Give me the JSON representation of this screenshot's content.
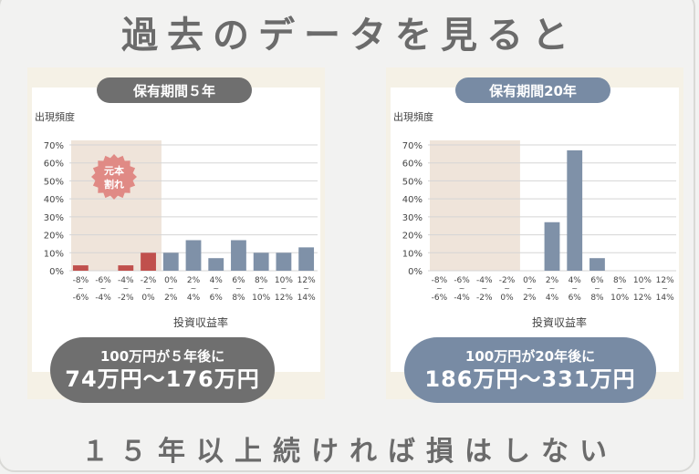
{
  "header": {
    "title": "過去のデータを見ると"
  },
  "footer": {
    "text": "１５年以上続ければ損はしない"
  },
  "left_panel": {
    "pill_label": "保有期間５年",
    "result_line1": "100万円が５年後に",
    "result_line2": "74万円〜176万円",
    "loss_badge_line1": "元本",
    "loss_badge_line2": "割れ"
  },
  "right_panel": {
    "pill_label": "保有期間20年",
    "result_line1": "100万円が20年後に",
    "result_line2": "186万円〜331万円"
  },
  "colors": {
    "negative_bar": "#c0504d",
    "positive_bar": "#7f91a8",
    "loss_region": "#efe4da",
    "loss_badge": "#e08a85"
  },
  "chart_data": [
    {
      "type": "bar",
      "ylabel": "出現頻度",
      "xlabel": "投資収益率",
      "yticks": [
        "0%",
        "10%",
        "20%",
        "30%",
        "40%",
        "50%",
        "60%",
        "70%"
      ],
      "ylim": [
        0,
        70
      ],
      "categories": [
        [
          "-8%",
          "~",
          "-6%"
        ],
        [
          "-6%",
          "~",
          "-4%"
        ],
        [
          "-4%",
          "~",
          "-2%"
        ],
        [
          "-2%",
          "~",
          "0%"
        ],
        [
          "0%",
          "~",
          "2%"
        ],
        [
          "2%",
          "~",
          "4%"
        ],
        [
          "4%",
          "~",
          "6%"
        ],
        [
          "6%",
          "~",
          "8%"
        ],
        [
          "8%",
          "~",
          "10%"
        ],
        [
          "10%",
          "~",
          "12%"
        ],
        [
          "12%",
          "~",
          "14%"
        ]
      ],
      "values": [
        3,
        0,
        3,
        10,
        10,
        17,
        7,
        17,
        10,
        10,
        13
      ],
      "negative_count": 4,
      "grid": true
    },
    {
      "type": "bar",
      "ylabel": "出現頻度",
      "xlabel": "投資収益率",
      "yticks": [
        "0%",
        "10%",
        "20%",
        "30%",
        "40%",
        "50%",
        "60%",
        "70%"
      ],
      "ylim": [
        0,
        70
      ],
      "categories": [
        [
          "-8%",
          "~",
          "-6%"
        ],
        [
          "-6%",
          "~",
          "-4%"
        ],
        [
          "-4%",
          "~",
          "-2%"
        ],
        [
          "-2%",
          "~",
          "0%"
        ],
        [
          "0%",
          "~",
          "2%"
        ],
        [
          "2%",
          "~",
          "4%"
        ],
        [
          "4%",
          "~",
          "6%"
        ],
        [
          "6%",
          "~",
          "8%"
        ],
        [
          "8%",
          "~",
          "10%"
        ],
        [
          "10%",
          "~",
          "12%"
        ],
        [
          "12%",
          "~",
          "14%"
        ]
      ],
      "values": [
        0,
        0,
        0,
        0,
        0,
        27,
        67,
        7,
        0,
        0,
        0
      ],
      "negative_count": 4,
      "grid": true
    }
  ]
}
